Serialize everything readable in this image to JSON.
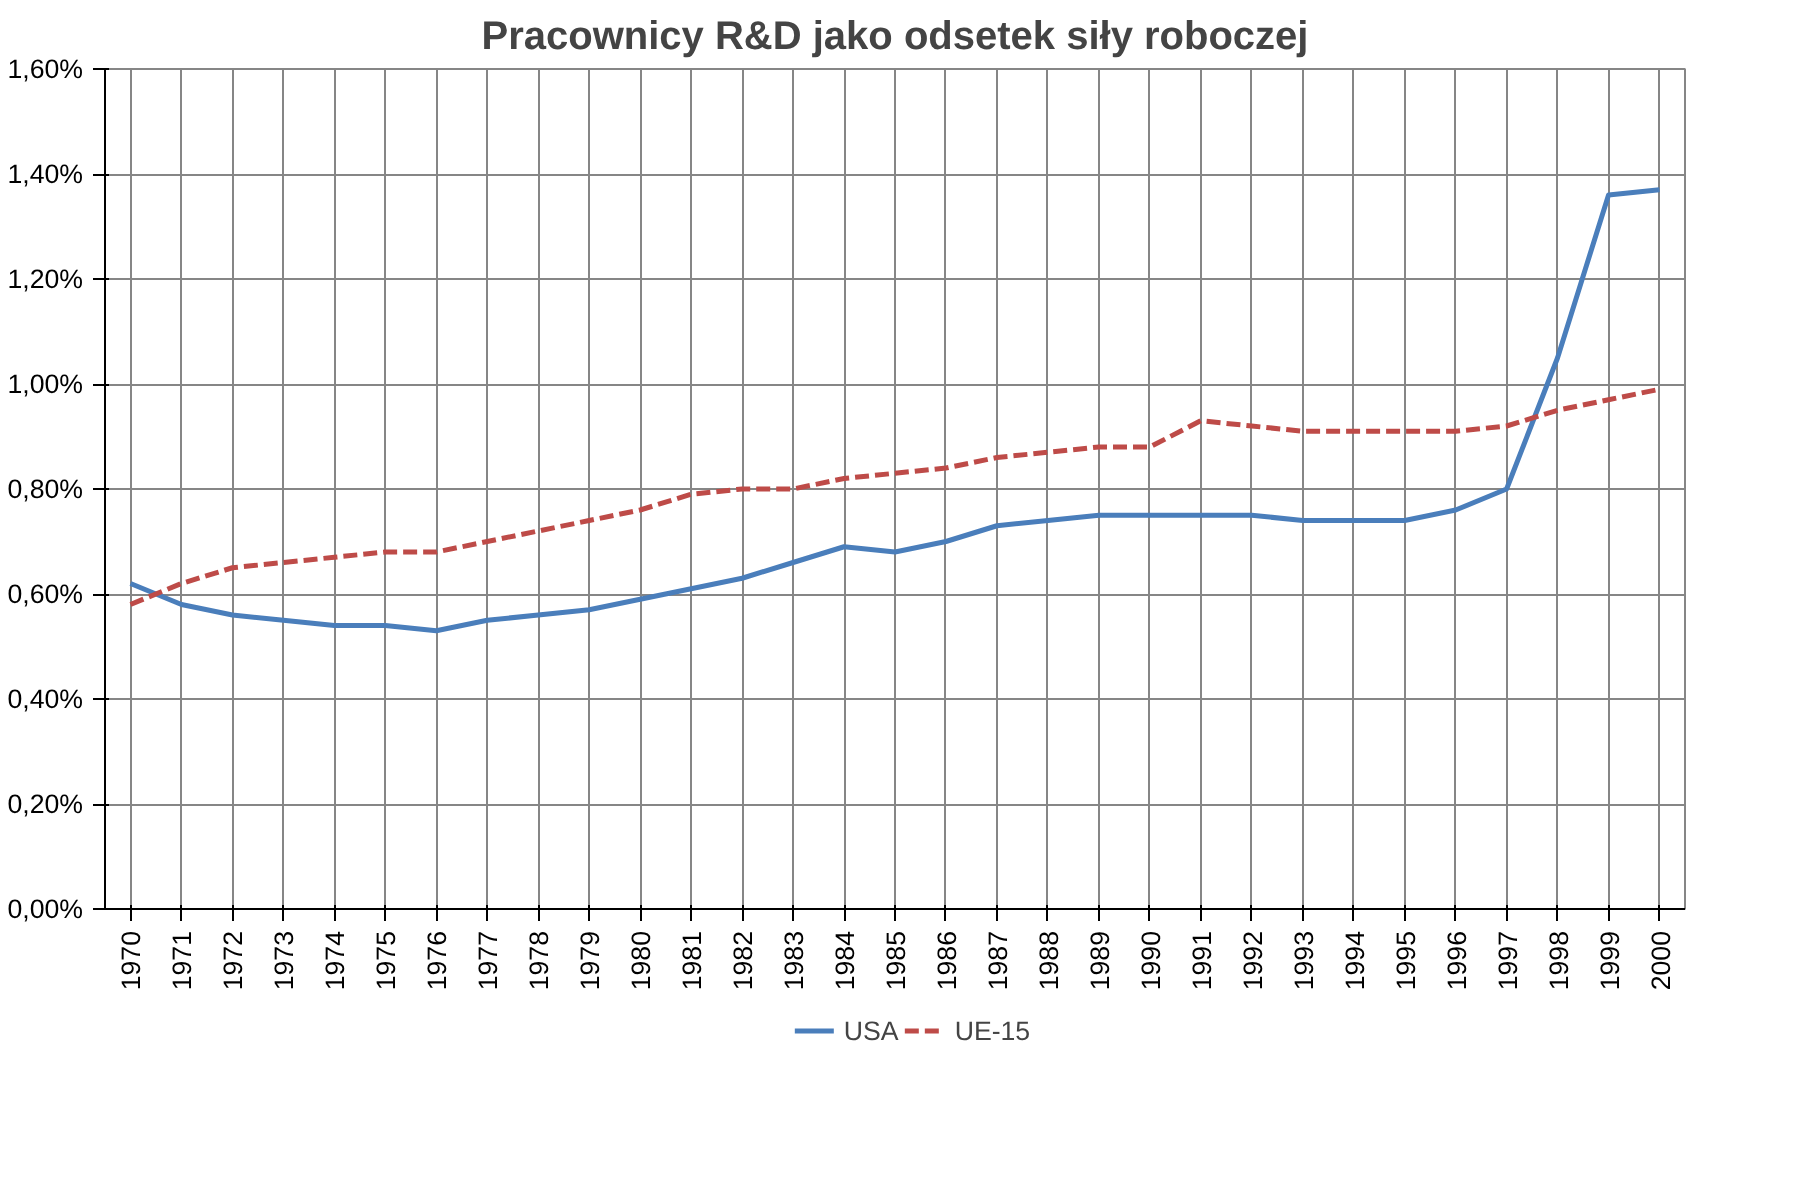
{
  "chart_data": {
    "type": "line",
    "title": "Pracownicy R&D jako odsetek siły roboczej",
    "categories": [
      "1970",
      "1971",
      "1972",
      "1973",
      "1974",
      "1975",
      "1976",
      "1977",
      "1978",
      "1979",
      "1980",
      "1981",
      "1982",
      "1983",
      "1984",
      "1985",
      "1986",
      "1987",
      "1988",
      "1989",
      "1990",
      "1991",
      "1992",
      "1993",
      "1994",
      "1995",
      "1996",
      "1997",
      "1998",
      "1999",
      "2000"
    ],
    "series": [
      {
        "name": "USA",
        "color": "#4a7ebb",
        "line_style": "solid",
        "values": [
          0.62,
          0.58,
          0.56,
          0.55,
          0.54,
          0.54,
          0.53,
          0.55,
          0.56,
          0.57,
          0.59,
          0.61,
          0.63,
          0.66,
          0.69,
          0.68,
          0.7,
          0.73,
          0.74,
          0.75,
          0.75,
          0.75,
          0.75,
          0.74,
          0.74,
          0.74,
          0.76,
          0.8,
          1.05,
          1.36,
          1.37
        ]
      },
      {
        "name": "UE-15",
        "color": "#be4b48",
        "line_style": "dashed",
        "values": [
          0.58,
          0.62,
          0.65,
          0.66,
          0.67,
          0.68,
          0.68,
          0.7,
          0.72,
          0.74,
          0.76,
          0.79,
          0.8,
          0.8,
          0.82,
          0.83,
          0.84,
          0.86,
          0.87,
          0.88,
          0.88,
          0.93,
          0.92,
          0.91,
          0.91,
          0.91,
          0.91,
          0.92,
          0.95,
          0.97,
          0.99
        ]
      }
    ],
    "ylim": [
      0,
      1.6
    ],
    "yticks": [
      {
        "value": 0,
        "label": "0,00%"
      },
      {
        "value": 0.2,
        "label": "0,20%"
      },
      {
        "value": 0.4,
        "label": "0,40%"
      },
      {
        "value": 0.6,
        "label": "0,60%"
      },
      {
        "value": 0.8,
        "label": "0,80%"
      },
      {
        "value": 1.0,
        "label": "1,00%"
      },
      {
        "value": 1.2,
        "label": "1,20%"
      },
      {
        "value": 1.4,
        "label": "1,40%"
      },
      {
        "value": 1.6,
        "label": "1,60%"
      }
    ],
    "grid": true,
    "legend": "bottom",
    "marker": "none"
  }
}
